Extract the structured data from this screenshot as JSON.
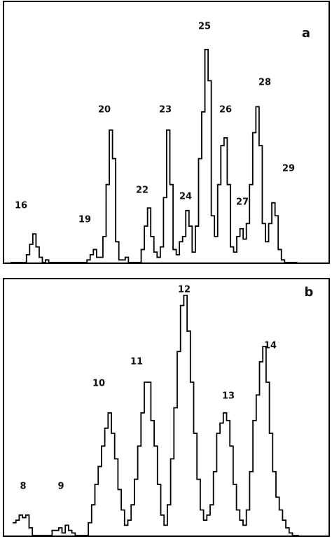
{
  "chart_data": [
    {
      "type": "line",
      "title": "a",
      "color": "#000000",
      "ylim": [
        0,
        100
      ],
      "values": [
        0,
        0,
        0,
        0,
        0,
        3,
        7,
        11,
        6,
        2,
        0,
        1,
        0,
        0,
        0,
        0,
        0,
        0,
        0,
        0,
        0,
        0,
        0,
        0,
        1,
        3,
        5,
        2,
        2,
        10,
        30,
        51,
        40,
        8,
        1,
        1,
        2,
        0,
        0,
        0,
        0,
        5,
        14,
        21,
        10,
        4,
        2,
        6,
        25,
        51,
        30,
        5,
        3,
        8,
        10,
        20,
        14,
        4,
        14,
        40,
        58,
        82,
        70,
        18,
        10,
        30,
        45,
        48,
        30,
        6,
        4,
        10,
        13,
        9,
        15,
        30,
        50,
        60,
        45,
        15,
        8,
        15,
        23,
        18,
        5,
        1,
        0,
        0,
        0,
        0
      ],
      "annotations": [
        "16",
        "19",
        "20",
        "22",
        "23",
        "24",
        "25",
        "26",
        "27",
        "28",
        "29"
      ]
    },
    {
      "type": "line",
      "title": "b",
      "color": "#000000",
      "ylim": [
        0,
        100
      ],
      "values": [
        5,
        6,
        8,
        7,
        8,
        3,
        0,
        0,
        0,
        0,
        0,
        0,
        2,
        2,
        3,
        1,
        4,
        2,
        1,
        0,
        0,
        0,
        0,
        5,
        12,
        20,
        27,
        35,
        42,
        48,
        40,
        30,
        18,
        10,
        4,
        6,
        12,
        22,
        35,
        48,
        60,
        60,
        45,
        35,
        20,
        8,
        4,
        12,
        30,
        50,
        72,
        90,
        94,
        80,
        60,
        40,
        22,
        10,
        6,
        8,
        12,
        25,
        40,
        44,
        48,
        45,
        35,
        20,
        10,
        6,
        4,
        10,
        25,
        45,
        55,
        68,
        74,
        60,
        40,
        25,
        15,
        10,
        6,
        3,
        1,
        0,
        0
      ],
      "annotations": [
        "8",
        "9",
        "10",
        "11",
        "12",
        "13",
        "14"
      ]
    }
  ]
}
